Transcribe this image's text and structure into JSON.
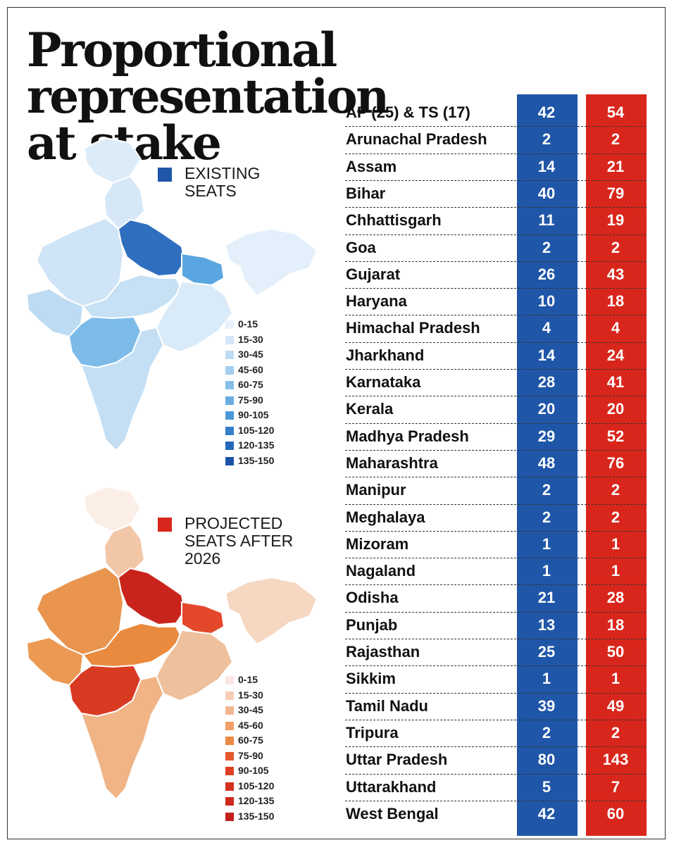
{
  "chart_data": {
    "type": "table",
    "title_lines": [
      "Proportional representation",
      "at stake"
    ],
    "series": [
      {
        "name": "EXISTING SEATS",
        "color": "#1f56a8"
      },
      {
        "name": "PROJECTED SEATS AFTER 2026",
        "color": "#d9261c"
      }
    ],
    "rows": [
      {
        "state": "AP (25) & TS (17)",
        "existing": 42,
        "projected": 54
      },
      {
        "state": "Arunachal Pradesh",
        "existing": 2,
        "projected": 2
      },
      {
        "state": "Assam",
        "existing": 14,
        "projected": 21
      },
      {
        "state": "Bihar",
        "existing": 40,
        "projected": 79
      },
      {
        "state": "Chhattisgarh",
        "existing": 11,
        "projected": 19
      },
      {
        "state": "Goa",
        "existing": 2,
        "projected": 2
      },
      {
        "state": "Gujarat",
        "existing": 26,
        "projected": 43
      },
      {
        "state": "Haryana",
        "existing": 10,
        "projected": 18
      },
      {
        "state": "Himachal Pradesh",
        "existing": 4,
        "projected": 4
      },
      {
        "state": "Jharkhand",
        "existing": 14,
        "projected": 24
      },
      {
        "state": "Karnataka",
        "existing": 28,
        "projected": 41
      },
      {
        "state": "Kerala",
        "existing": 20,
        "projected": 20
      },
      {
        "state": "Madhya Pradesh",
        "existing": 29,
        "projected": 52
      },
      {
        "state": "Maharashtra",
        "existing": 48,
        "projected": 76
      },
      {
        "state": "Manipur",
        "existing": 2,
        "projected": 2
      },
      {
        "state": "Meghalaya",
        "existing": 2,
        "projected": 2
      },
      {
        "state": "Mizoram",
        "existing": 1,
        "projected": 1
      },
      {
        "state": "Nagaland",
        "existing": 1,
        "projected": 1
      },
      {
        "state": "Odisha",
        "existing": 21,
        "projected": 28
      },
      {
        "state": "Punjab",
        "existing": 13,
        "projected": 18
      },
      {
        "state": "Rajasthan",
        "existing": 25,
        "projected": 50
      },
      {
        "state": "Sikkim",
        "existing": 1,
        "projected": 1
      },
      {
        "state": "Tamil Nadu",
        "existing": 39,
        "projected": 49
      },
      {
        "state": "Tripura",
        "existing": 2,
        "projected": 2
      },
      {
        "state": "Uttar Pradesh",
        "existing": 80,
        "projected": 143
      },
      {
        "state": "Uttarakhand",
        "existing": 5,
        "projected": 7
      },
      {
        "state": "West Bengal",
        "existing": 42,
        "projected": 60
      }
    ],
    "maps": [
      {
        "legend_lines": [
          "EXISTING",
          "SEATS"
        ],
        "swatch": "#1f56a8",
        "scale": [
          "0-15",
          "15-30",
          "30-45",
          "45-60",
          "60-75",
          "75-90",
          "90-105",
          "105-120",
          "120-135",
          "135-150"
        ],
        "scale_colors": [
          "#e6f1fb",
          "#d3e7f8",
          "#bcdcf4",
          "#a2cff0",
          "#86c0ea",
          "#68aee3",
          "#4b98d9",
          "#347ecb",
          "#2568bb",
          "#1b52a6"
        ],
        "region_colors": {
          "north": "#d6e8f7",
          "kashmir": "#dcebf8",
          "up": "#2f6fbf",
          "bihar": "#5aa6e0",
          "rajasthan": "#cfe4f6",
          "gujarat": "#bddcf3",
          "mp": "#c6e0f4",
          "maharashtra": "#7cbbe8",
          "south": "#c4dff4",
          "east": "#d9eaf8",
          "ne": "#e3effa"
        }
      },
      {
        "legend_lines": [
          "PROJECTED",
          "SEATS AFTER",
          "2026"
        ],
        "swatch": "#d9261c",
        "scale": [
          "0-15",
          "15-30",
          "30-45",
          "45-60",
          "60-75",
          "75-90",
          "90-105",
          "105-120",
          "120-135",
          "135-150"
        ],
        "scale_colors": [
          "#fbe6e4",
          "#f7cdb4",
          "#f2b68e",
          "#ef9f66",
          "#ea8944",
          "#e4582c",
          "#de4022",
          "#d7301e",
          "#cd2a1d",
          "#c4201b"
        ],
        "region_colors": {
          "north": "#f2c7a8",
          "kashmir": "#fbeee6",
          "up": "#c9241c",
          "bihar": "#e4482a",
          "rajasthan": "#e9944f",
          "gujarat": "#ec9954",
          "mp": "#e98a3e",
          "maharashtra": "#d93a22",
          "south": "#f0b486",
          "east": "#eec09b",
          "ne": "#f6d7c2"
        }
      }
    ]
  }
}
